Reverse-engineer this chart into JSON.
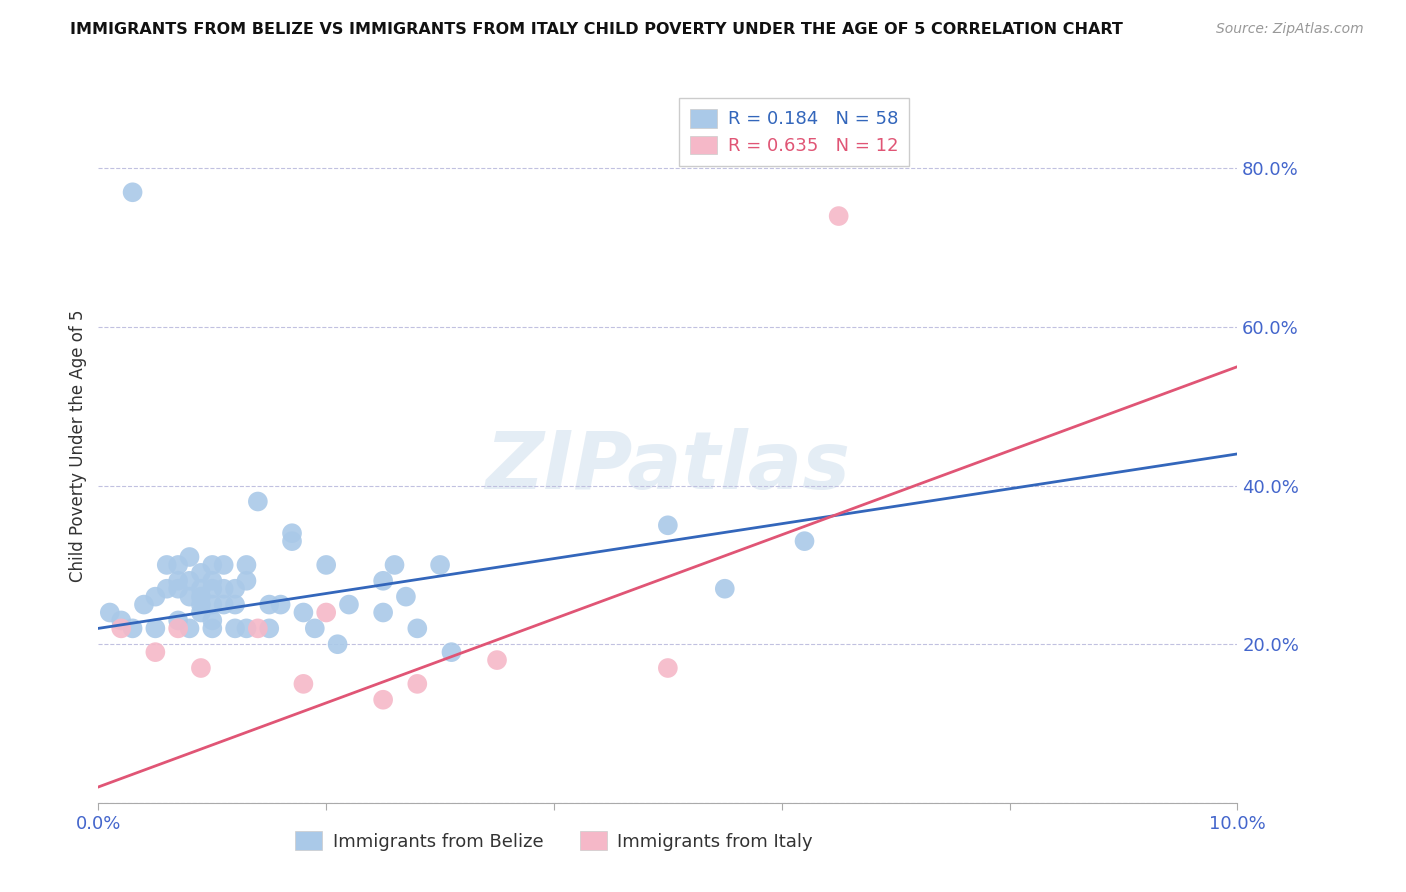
{
  "title": "IMMIGRANTS FROM BELIZE VS IMMIGRANTS FROM ITALY CHILD POVERTY UNDER THE AGE OF 5 CORRELATION CHART",
  "source": "Source: ZipAtlas.com",
  "ylabel": "Child Poverty Under the Age of 5",
  "xlim": [
    0.0,
    0.1
  ],
  "ylim": [
    0.0,
    0.9
  ],
  "ytick_values": [
    0.0,
    0.2,
    0.4,
    0.6,
    0.8
  ],
  "xtick_values": [
    0.0,
    0.02,
    0.04,
    0.06,
    0.08,
    0.1
  ],
  "belize_R": 0.184,
  "belize_N": 58,
  "italy_R": 0.635,
  "italy_N": 12,
  "belize_color": "#aac9e8",
  "belize_line_color": "#3366bb",
  "italy_color": "#f5b8c8",
  "italy_line_color": "#e05575",
  "grid_color": "#bbbbdd",
  "background_color": "#ffffff",
  "watermark": "ZIPatlas",
  "belize_x": [
    0.001,
    0.002,
    0.003,
    0.003,
    0.004,
    0.005,
    0.005,
    0.006,
    0.006,
    0.007,
    0.007,
    0.007,
    0.007,
    0.008,
    0.008,
    0.008,
    0.008,
    0.009,
    0.009,
    0.009,
    0.009,
    0.009,
    0.01,
    0.01,
    0.01,
    0.01,
    0.01,
    0.01,
    0.011,
    0.011,
    0.011,
    0.012,
    0.012,
    0.012,
    0.013,
    0.013,
    0.013,
    0.014,
    0.015,
    0.015,
    0.016,
    0.017,
    0.017,
    0.018,
    0.019,
    0.02,
    0.021,
    0.022,
    0.025,
    0.025,
    0.026,
    0.027,
    0.028,
    0.03,
    0.031,
    0.05,
    0.055,
    0.062
  ],
  "belize_y": [
    0.24,
    0.23,
    0.77,
    0.22,
    0.25,
    0.26,
    0.22,
    0.3,
    0.27,
    0.3,
    0.28,
    0.27,
    0.23,
    0.31,
    0.28,
    0.26,
    0.22,
    0.29,
    0.27,
    0.26,
    0.25,
    0.24,
    0.3,
    0.28,
    0.27,
    0.25,
    0.23,
    0.22,
    0.3,
    0.27,
    0.25,
    0.27,
    0.25,
    0.22,
    0.3,
    0.28,
    0.22,
    0.38,
    0.25,
    0.22,
    0.25,
    0.34,
    0.33,
    0.24,
    0.22,
    0.3,
    0.2,
    0.25,
    0.28,
    0.24,
    0.3,
    0.26,
    0.22,
    0.3,
    0.19,
    0.35,
    0.27,
    0.33
  ],
  "italy_x": [
    0.002,
    0.005,
    0.007,
    0.009,
    0.014,
    0.018,
    0.02,
    0.025,
    0.028,
    0.035,
    0.05,
    0.065
  ],
  "italy_y": [
    0.22,
    0.19,
    0.22,
    0.17,
    0.22,
    0.15,
    0.24,
    0.13,
    0.15,
    0.18,
    0.17,
    0.74
  ],
  "belize_line_x": [
    0.0,
    0.1
  ],
  "belize_line_y": [
    0.22,
    0.44
  ],
  "italy_line_x": [
    0.0,
    0.1
  ],
  "italy_line_y": [
    0.02,
    0.55
  ]
}
